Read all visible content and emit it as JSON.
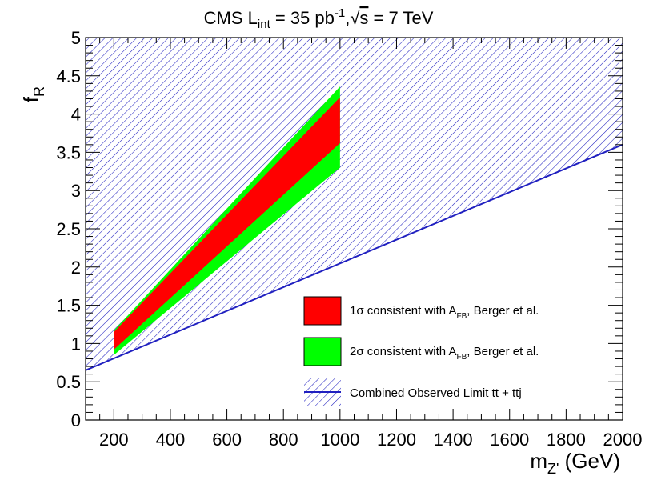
{
  "chart_data": {
    "type": "area",
    "title": {
      "experiment": "CMS",
      "lumi_symbol": "L",
      "lumi_sub": "int",
      "lumi_value": "= 35 pb",
      "lumi_sup": "-1",
      "sep": ",",
      "sqrt": "√",
      "s_symbol": "s",
      "energy": "= 7 TeV"
    },
    "xlabel": {
      "main": "m",
      "sub": "Z'",
      "unit": " (GeV)"
    },
    "ylabel": {
      "main": "f",
      "sub": "R"
    },
    "xlim": [
      100,
      2000
    ],
    "ylim": [
      0,
      5
    ],
    "xticks": [
      200,
      400,
      600,
      800,
      1000,
      1200,
      1400,
      1600,
      1800,
      2000
    ],
    "yticks": [
      0,
      0.5,
      1,
      1.5,
      2,
      2.5,
      3,
      3.5,
      4,
      4.5,
      5
    ],
    "ytick_labels": [
      "0",
      "0.5",
      "1",
      "1.5",
      "2",
      "2.5",
      "3",
      "3.5",
      "4",
      "4.5",
      "5"
    ],
    "series": [
      {
        "name": "Combined Observed Limit tt + ttj",
        "style": "hatched",
        "color": "#2020c0",
        "limit_line": [
          [
            100,
            0.65
          ],
          [
            2000,
            3.6
          ]
        ]
      },
      {
        "name": "2σ consistent with A_FB, Berger et al.",
        "color": "#00ff00",
        "m": [
          200,
          1000
        ],
        "upper": [
          1.17,
          4.36
        ],
        "lower": [
          0.85,
          3.3
        ]
      },
      {
        "name": "1σ consistent with A_FB, Berger et al.",
        "color": "#ff0000",
        "m": [
          200,
          1000
        ],
        "upper": [
          1.15,
          4.22
        ],
        "lower": [
          0.92,
          3.62
        ]
      }
    ],
    "legend": {
      "position": "bottom-right",
      "entries": [
        {
          "prefix": "1σ consistent with A",
          "sub": "FB",
          "suffix": ", Berger et al.",
          "swatch": "red-box"
        },
        {
          "prefix": "2σ consistent with A",
          "sub": "FB",
          "suffix": ", Berger et al.",
          "swatch": "green-box"
        },
        {
          "prefix": "Combined Observed Limit tt + ttj",
          "sub": "",
          "suffix": "",
          "swatch": "hatched-line"
        }
      ]
    }
  }
}
